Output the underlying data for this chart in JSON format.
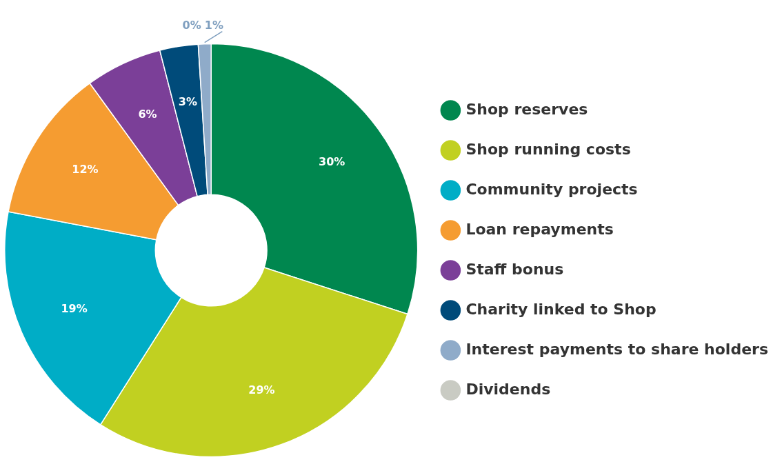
{
  "chart_data": {
    "type": "donut",
    "categories": [
      "Shop reserves",
      "Shop running costs",
      "Community projects",
      "Loan repayments",
      "Staff bonus",
      "Charity linked to Shop",
      "Interest payments to share holders",
      "Dividends"
    ],
    "values": [
      30,
      29,
      19,
      12,
      6,
      3,
      1,
      0
    ],
    "value_labels": [
      "30%",
      "29%",
      "19%",
      "12%",
      "6%",
      "3%",
      "1%",
      "0%"
    ],
    "colors": [
      "#00874f",
      "#c1d021",
      "#00adc6",
      "#f59c31",
      "#7b3f98",
      "#004b7a",
      "#8fabc9",
      "#c9cbc3"
    ],
    "legend": "right"
  }
}
